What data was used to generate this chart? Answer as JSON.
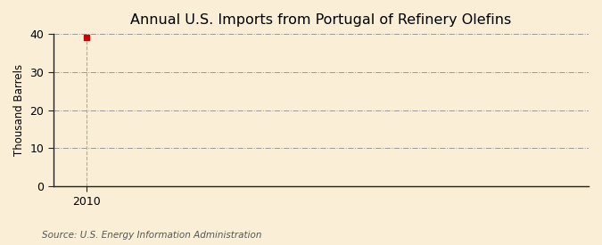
{
  "title": "Annual U.S. Imports from Portugal of Refinery Olefins",
  "ylabel": "Thousand Barrels",
  "source_text": "Source: U.S. Energy Information Administration",
  "x_data": [
    2010
  ],
  "y_data": [
    39
  ],
  "xlim": [
    2009.2,
    2022
  ],
  "ylim": [
    0,
    40
  ],
  "yticks": [
    0,
    10,
    20,
    30,
    40
  ],
  "xticks": [
    2010
  ],
  "marker_color": "#cc0000",
  "marker_style": "s",
  "marker_size": 4,
  "bg_color": "#faefd6",
  "plot_bg_color": "#faefd6",
  "grid_color": "#999999",
  "grid_style": "-.",
  "vline_color": "#aaaaaa",
  "vline_style": "--",
  "axis_color": "#222222",
  "title_fontsize": 11.5,
  "label_fontsize": 8.5,
  "tick_fontsize": 9,
  "source_fontsize": 7.5
}
